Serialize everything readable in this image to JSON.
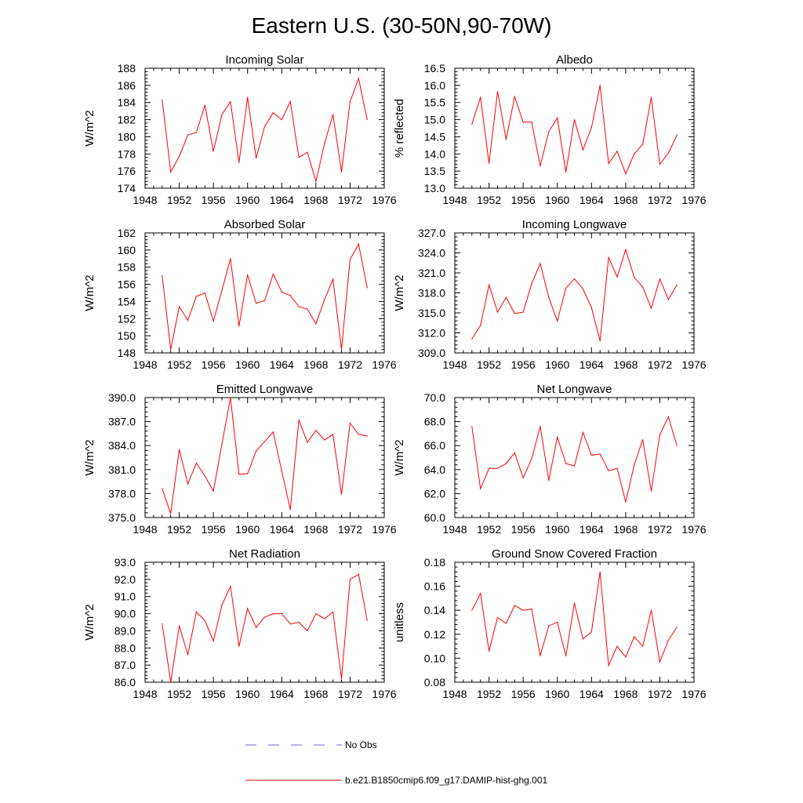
{
  "figure": {
    "title": "Eastern U.S. (30-50N,90-70W)"
  },
  "legend": {
    "items": [
      {
        "label": "No Obs",
        "color": "#6b6bd6",
        "style": "dashed"
      },
      {
        "label": "b.e21.B1850cmip6.f09_g17.DAMIP-hist-ghg.001",
        "color": "#ff0000",
        "style": "solid"
      }
    ]
  },
  "chart_data": [
    {
      "type": "line",
      "title": "Incoming Solar",
      "ylabel": "W/m^2",
      "xlim": [
        1948,
        1976
      ],
      "ylim": [
        174,
        188
      ],
      "xticks": [
        "1948",
        "1952",
        "1956",
        "1960",
        "1964",
        "1968",
        "1972",
        "1976"
      ],
      "yticks": [
        "174",
        "176",
        "178",
        "180",
        "182",
        "184",
        "186",
        "188"
      ],
      "series": [
        {
          "color": "#ff0000",
          "x": [
            1950,
            1951,
            1952,
            1953,
            1954,
            1955,
            1956,
            1957,
            1958,
            1959,
            1960,
            1961,
            1962,
            1963,
            1964,
            1965,
            1966,
            1967,
            1968,
            1969,
            1970,
            1971,
            1972,
            1973,
            1974
          ],
          "values": [
            184.3,
            175.9,
            177.7,
            180.2,
            180.5,
            183.7,
            178.3,
            182.6,
            184.1,
            177.0,
            184.6,
            177.5,
            181.2,
            182.8,
            182.0,
            184.1,
            177.6,
            178.2,
            174.8,
            179.2,
            182.6,
            175.9,
            184.1,
            186.8,
            182.0
          ]
        }
      ]
    },
    {
      "type": "line",
      "title": "Albedo",
      "ylabel": "% reflected",
      "xlim": [
        1948,
        1976
      ],
      "ylim": [
        13.0,
        16.5
      ],
      "xticks": [
        "1948",
        "1952",
        "1956",
        "1960",
        "1964",
        "1968",
        "1972",
        "1976"
      ],
      "yticks": [
        "13.0",
        "13.5",
        "14.0",
        "14.5",
        "15.0",
        "15.5",
        "16.0",
        "16.5"
      ],
      "series": [
        {
          "color": "#ff0000",
          "x": [
            1950,
            1951,
            1952,
            1953,
            1954,
            1955,
            1956,
            1957,
            1958,
            1959,
            1960,
            1961,
            1962,
            1963,
            1964,
            1965,
            1966,
            1967,
            1968,
            1969,
            1970,
            1971,
            1972,
            1973,
            1974
          ],
          "values": [
            14.87,
            15.65,
            13.73,
            15.82,
            14.42,
            15.67,
            14.93,
            14.93,
            13.65,
            14.65,
            15.05,
            13.47,
            15.0,
            14.12,
            14.77,
            16.0,
            13.72,
            14.08,
            13.42,
            14.0,
            14.28,
            15.65,
            13.7,
            14.02,
            14.55
          ]
        }
      ]
    },
    {
      "type": "line",
      "title": "Absorbed Solar",
      "ylabel": "W/m^2",
      "xlim": [
        1948,
        1976
      ],
      "ylim": [
        148,
        162
      ],
      "xticks": [
        "1948",
        "1952",
        "1956",
        "1960",
        "1964",
        "1968",
        "1972",
        "1976"
      ],
      "yticks": [
        "148",
        "150",
        "152",
        "154",
        "156",
        "158",
        "160",
        "162"
      ],
      "series": [
        {
          "color": "#ff0000",
          "x": [
            1950,
            1951,
            1952,
            1953,
            1954,
            1955,
            1956,
            1957,
            1958,
            1959,
            1960,
            1961,
            1962,
            1963,
            1964,
            1965,
            1966,
            1967,
            1968,
            1969,
            1970,
            1971,
            1972,
            1973,
            1974
          ],
          "values": [
            157.0,
            148.4,
            153.4,
            151.8,
            154.6,
            155.0,
            151.7,
            155.3,
            159.0,
            151.1,
            157.1,
            153.8,
            154.1,
            157.2,
            155.1,
            154.7,
            153.4,
            153.1,
            151.4,
            154.2,
            156.6,
            148.4,
            158.9,
            160.7,
            155.6
          ]
        }
      ]
    },
    {
      "type": "line",
      "title": "Incoming Longwave",
      "ylabel": "W/m^2",
      "xlim": [
        1948,
        1976
      ],
      "ylim": [
        309.0,
        327.0
      ],
      "xticks": [
        "1948",
        "1952",
        "1956",
        "1960",
        "1964",
        "1968",
        "1972",
        "1976"
      ],
      "yticks": [
        "309.0",
        "312.0",
        "315.0",
        "318.0",
        "321.0",
        "324.0",
        "327.0"
      ],
      "series": [
        {
          "color": "#ff0000",
          "x": [
            1950,
            1951,
            1952,
            1953,
            1954,
            1955,
            1956,
            1957,
            1958,
            1959,
            1960,
            1961,
            1962,
            1963,
            1964,
            1965,
            1966,
            1967,
            1968,
            1969,
            1970,
            1971,
            1972,
            1973,
            1974
          ],
          "values": [
            311.1,
            313.1,
            319.2,
            315.1,
            317.3,
            314.9,
            315.1,
            319.4,
            322.4,
            317.3,
            313.8,
            318.7,
            320.1,
            318.6,
            315.8,
            310.8,
            323.3,
            320.4,
            324.5,
            320.3,
            318.9,
            315.7,
            320.1,
            317.0,
            319.2
          ]
        }
      ]
    },
    {
      "type": "line",
      "title": "Emitted Longwave",
      "ylabel": "W/m^2",
      "xlim": [
        1948,
        1976
      ],
      "ylim": [
        375.0,
        390.0
      ],
      "xticks": [
        "1948",
        "1952",
        "1956",
        "1960",
        "1964",
        "1968",
        "1972",
        "1976"
      ],
      "yticks": [
        "375.0",
        "378.0",
        "381.0",
        "384.0",
        "387.0",
        "390.0"
      ],
      "series": [
        {
          "color": "#ff0000",
          "x": [
            1950,
            1951,
            1952,
            1953,
            1954,
            1955,
            1956,
            1957,
            1958,
            1959,
            1960,
            1961,
            1962,
            1963,
            1964,
            1965,
            1966,
            1967,
            1968,
            1969,
            1970,
            1971,
            1972,
            1973,
            1974
          ],
          "values": [
            378.6,
            375.5,
            383.5,
            379.2,
            381.8,
            380.2,
            378.3,
            384.2,
            390.0,
            380.4,
            380.5,
            383.3,
            384.5,
            385.7,
            380.8,
            376.0,
            387.2,
            384.4,
            385.9,
            384.7,
            385.4,
            377.9,
            386.8,
            385.4,
            385.2
          ]
        }
      ]
    },
    {
      "type": "line",
      "title": "Net Longwave",
      "ylabel": "W/m^2",
      "xlim": [
        1948,
        1976
      ],
      "ylim": [
        60.0,
        70.0
      ],
      "xticks": [
        "1948",
        "1952",
        "1956",
        "1960",
        "1964",
        "1968",
        "1972",
        "1976"
      ],
      "yticks": [
        "60.0",
        "62.0",
        "64.0",
        "66.0",
        "68.0",
        "70.0"
      ],
      "series": [
        {
          "color": "#ff0000",
          "x": [
            1950,
            1951,
            1952,
            1953,
            1954,
            1955,
            1956,
            1957,
            1958,
            1959,
            1960,
            1961,
            1962,
            1963,
            1964,
            1965,
            1966,
            1967,
            1968,
            1969,
            1970,
            1971,
            1972,
            1973,
            1974
          ],
          "values": [
            67.6,
            62.4,
            64.1,
            64.1,
            64.5,
            65.4,
            63.3,
            64.9,
            67.6,
            63.1,
            66.7,
            64.5,
            64.3,
            67.1,
            65.2,
            65.3,
            63.9,
            64.1,
            61.3,
            64.4,
            66.5,
            62.2,
            66.9,
            68.4,
            66.0
          ]
        }
      ]
    },
    {
      "type": "line",
      "title": "Net Radiation",
      "ylabel": "W/m^2",
      "xlim": [
        1948,
        1976
      ],
      "ylim": [
        86.0,
        93.0
      ],
      "xticks": [
        "1948",
        "1952",
        "1956",
        "1960",
        "1964",
        "1968",
        "1972",
        "1976"
      ],
      "yticks": [
        "86.0",
        "87.0",
        "88.0",
        "89.0",
        "90.0",
        "91.0",
        "92.0",
        "93.0"
      ],
      "series": [
        {
          "color": "#ff0000",
          "x": [
            1950,
            1951,
            1952,
            1953,
            1954,
            1955,
            1956,
            1957,
            1958,
            1959,
            1960,
            1961,
            1962,
            1963,
            1964,
            1965,
            1966,
            1967,
            1968,
            1969,
            1970,
            1971,
            1972,
            1973,
            1974
          ],
          "values": [
            89.4,
            86.0,
            89.3,
            87.6,
            90.1,
            89.6,
            88.4,
            90.5,
            91.6,
            88.1,
            90.3,
            89.2,
            89.8,
            90.0,
            90.0,
            89.4,
            89.5,
            89.0,
            90.0,
            89.7,
            90.1,
            86.2,
            92.0,
            92.3,
            89.6
          ]
        }
      ]
    },
    {
      "type": "line",
      "title": "Ground Snow Covered Fraction",
      "ylabel": "unitless",
      "xlim": [
        1948,
        1976
      ],
      "ylim": [
        0.08,
        0.18
      ],
      "xticks": [
        "1948",
        "1952",
        "1956",
        "1960",
        "1964",
        "1968",
        "1972",
        "1976"
      ],
      "yticks": [
        "0.08",
        "0.10",
        "0.12",
        "0.14",
        "0.16",
        "0.18"
      ],
      "series": [
        {
          "color": "#ff0000",
          "x": [
            1950,
            1951,
            1952,
            1953,
            1954,
            1955,
            1956,
            1957,
            1958,
            1959,
            1960,
            1961,
            1962,
            1963,
            1964,
            1965,
            1966,
            1967,
            1968,
            1969,
            1970,
            1971,
            1972,
            1973,
            1974
          ],
          "values": [
            0.14,
            0.154,
            0.106,
            0.134,
            0.129,
            0.144,
            0.14,
            0.141,
            0.102,
            0.127,
            0.13,
            0.102,
            0.146,
            0.116,
            0.122,
            0.172,
            0.094,
            0.11,
            0.101,
            0.118,
            0.11,
            0.14,
            0.097,
            0.115,
            0.126
          ]
        }
      ]
    }
  ]
}
